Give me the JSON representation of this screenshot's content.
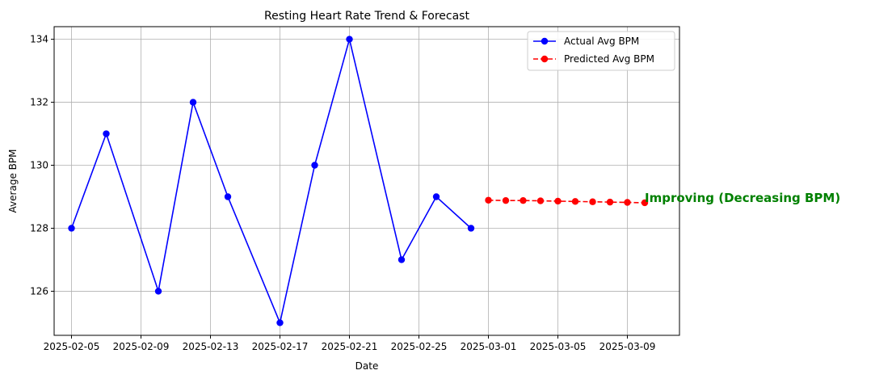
{
  "chart_data": {
    "type": "line",
    "title": "Resting Heart Rate Trend & Forecast",
    "xlabel": "Date",
    "ylabel": "Average BPM",
    "xlim": [
      "2025-02-04",
      "2025-03-12"
    ],
    "ylim": [
      124.6,
      134.4
    ],
    "grid": true,
    "legend_position": "top-right",
    "x_ticks": [
      "2025-02-05",
      "2025-02-09",
      "2025-02-13",
      "2025-02-17",
      "2025-02-21",
      "2025-02-25",
      "2025-03-01",
      "2025-03-05",
      "2025-03-09"
    ],
    "y_ticks": [
      126,
      128,
      130,
      132,
      134
    ],
    "series": [
      {
        "name": "Actual Avg BPM",
        "color": "#0000ff",
        "line_style": "solid",
        "marker": "circle",
        "x": [
          "2025-02-05",
          "2025-02-07",
          "2025-02-10",
          "2025-02-12",
          "2025-02-14",
          "2025-02-17",
          "2025-02-19",
          "2025-02-21",
          "2025-02-24",
          "2025-02-26",
          "2025-02-28"
        ],
        "y": [
          128,
          131,
          126,
          132,
          129,
          125,
          130,
          134,
          127,
          129,
          128
        ]
      },
      {
        "name": "Predicted Avg BPM",
        "color": "#ff0000",
        "line_style": "dashed",
        "marker": "circle",
        "x": [
          "2025-03-01",
          "2025-03-02",
          "2025-03-03",
          "2025-03-04",
          "2025-03-05",
          "2025-03-06",
          "2025-03-07",
          "2025-03-08",
          "2025-03-09",
          "2025-03-10"
        ],
        "y": [
          128.89,
          128.88,
          128.88,
          128.87,
          128.86,
          128.85,
          128.84,
          128.83,
          128.82,
          128.81
        ]
      }
    ],
    "annotations": [
      {
        "text": "Improving (Decreasing BPM)",
        "x": "2025-03-10",
        "y": 128.81,
        "color": "#008000"
      }
    ]
  }
}
